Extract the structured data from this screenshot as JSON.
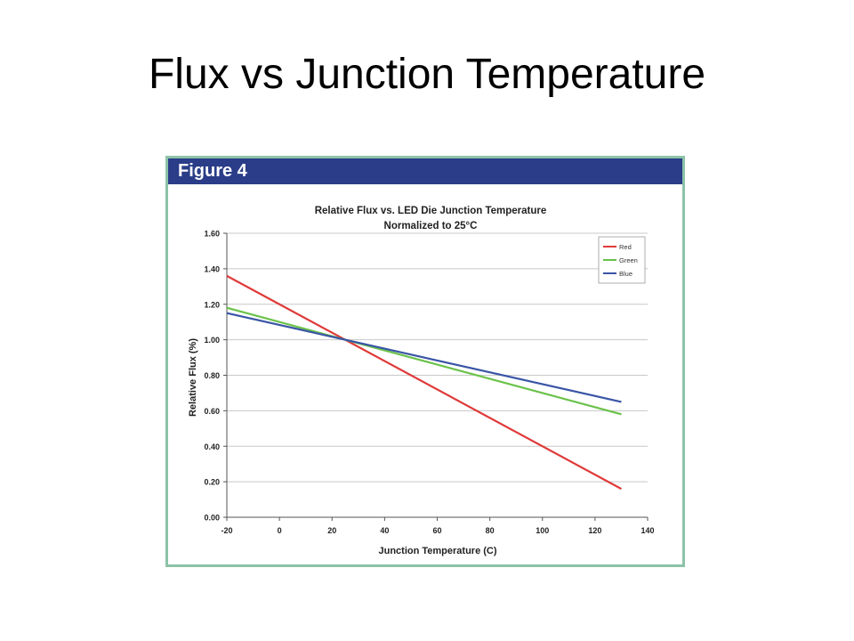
{
  "slide": {
    "title": "Flux vs Junction Temperature"
  },
  "figure": {
    "label": "Figure 4"
  },
  "chart_data": {
    "type": "line",
    "title": "Relative Flux vs. LED Die Junction Temperature",
    "subtitle": "Normalized to 25°C",
    "xlabel": "Junction Temperature (C)",
    "ylabel": "Relative Flux (%)",
    "xlim": [
      -20,
      140
    ],
    "ylim": [
      0,
      1.6
    ],
    "xticks": [
      "-20",
      "0",
      "20",
      "40",
      "60",
      "80",
      "100",
      "120",
      "140"
    ],
    "yticks": [
      "0.00",
      "0.20",
      "0.40",
      "0.60",
      "0.80",
      "1.00",
      "1.20",
      "1.40",
      "1.60"
    ],
    "grid": "horizontal",
    "legend_position": "top-right",
    "series": [
      {
        "name": "Red",
        "color": "#e03a3a",
        "x": [
          -20,
          130
        ],
        "y": [
          1.36,
          0.16
        ]
      },
      {
        "name": "Green",
        "color": "#6ac24a",
        "x": [
          -20,
          130
        ],
        "y": [
          1.18,
          0.58
        ]
      },
      {
        "name": "Blue",
        "color": "#3a55a6",
        "x": [
          -20,
          130
        ],
        "y": [
          1.15,
          0.65
        ]
      }
    ]
  }
}
